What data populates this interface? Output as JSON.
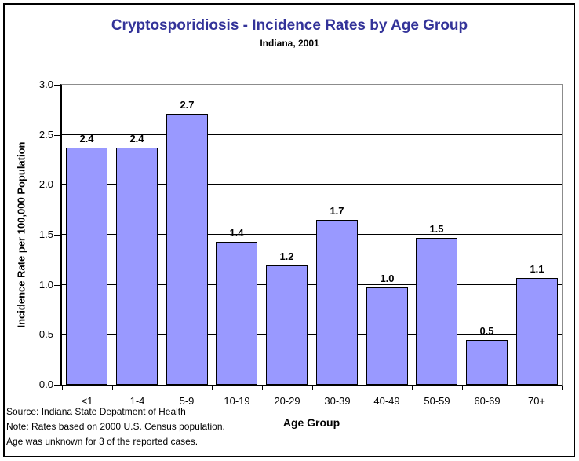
{
  "figure": {
    "title": "Cryptosporidiosis - Incidence Rates by Age Group",
    "subtitle": "Indiana, 2001"
  },
  "chart_data": {
    "type": "bar",
    "title": "Cryptosporidiosis - Incidence Rates by Age Group",
    "subtitle": "Indiana, 2001",
    "categories": [
      "<1",
      "1-4",
      "5-9",
      "10-19",
      "20-29",
      "30-39",
      "40-49",
      "50-59",
      "60-69",
      "70+"
    ],
    "values": [
      2.4,
      2.4,
      2.7,
      1.4,
      1.2,
      1.7,
      1.0,
      1.5,
      0.5,
      1.1
    ],
    "data_labels": [
      "2.4",
      "2.4",
      "2.7",
      "1.4",
      "1.2",
      "1.7",
      "1.0",
      "1.5",
      "0.5",
      "1.1"
    ],
    "plotted_values": [
      2.37,
      2.37,
      2.71,
      1.43,
      1.19,
      1.65,
      0.97,
      1.47,
      0.45,
      1.07
    ],
    "xlabel": "Age Group",
    "ylabel": "Incidence Rate per 100,000 Population",
    "ylim": [
      0,
      3.0
    ],
    "ytick_step": 0.5,
    "ytick_labels": [
      "0.0",
      "0.5",
      "1.0",
      "1.5",
      "2.0",
      "2.5",
      "3.0"
    ],
    "grid": "horizontal-major",
    "legend_position": "none"
  },
  "colors": {
    "title": "#333399",
    "bar_fill": "#9999FF",
    "bar_border": "#000000",
    "gridline": "#000000",
    "plot_border": "#8C8C8C",
    "text": "#000000"
  },
  "notes": {
    "source": "Source: Indiana State Depatment of Health",
    "census": "Note: Rates based on 2000 U.S. Census population.",
    "age_unknown": "Age was unknown for 3 of the reported cases."
  }
}
